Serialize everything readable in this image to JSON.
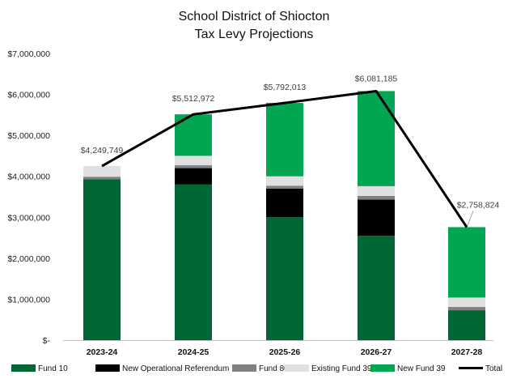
{
  "chart_data": {
    "type": "bar",
    "stacked": true,
    "title": [
      "School District of Shiocton",
      "Tax Levy Projections"
    ],
    "categories": [
      "2023-24",
      "2024-25",
      "2025-26",
      "2026-27",
      "2027-28"
    ],
    "ylim": [
      0,
      7000000
    ],
    "yticks": [
      0,
      1000000,
      2000000,
      3000000,
      4000000,
      5000000,
      6000000,
      7000000
    ],
    "ytick_labels": [
      "$-",
      "$1,000,000",
      "$2,000,000",
      "$3,000,000",
      "$4,000,000",
      "$5,000,000",
      "$6,000,000",
      "$7,000,000"
    ],
    "grid": false,
    "legend_position": "bottom",
    "series": [
      {
        "name": "Fund 10",
        "color": "#006633",
        "values": [
          3930000,
          3800000,
          3000000,
          2550000,
          730000
        ]
      },
      {
        "name": "New Operational Referendum",
        "color": "#000000",
        "values": [
          0,
          400000,
          700000,
          880000,
          0
        ]
      },
      {
        "name": "Fund 80",
        "color": "#808080",
        "values": [
          60000,
          70000,
          70000,
          90000,
          80000
        ]
      },
      {
        "name": "Existing Fund 39",
        "color": "#e0e0e0",
        "values": [
          259749,
          230000,
          230000,
          240000,
          230000
        ]
      },
      {
        "name": "New Fund 39",
        "color": "#00a651",
        "values": [
          0,
          1012972,
          1792013,
          2321185,
          1718824
        ]
      }
    ],
    "total": {
      "name": "Total",
      "color": "#000000",
      "values": [
        4249749,
        5512972,
        5792013,
        6081185,
        2758824
      ],
      "labels": [
        "$4,249,749",
        "$5,512,972",
        "$5,792,013",
        "$6,081,185",
        "$2,758,824"
      ]
    },
    "legend_markers": [
      "bar",
      "bar",
      "bar",
      "bar",
      "bar",
      "line"
    ]
  }
}
